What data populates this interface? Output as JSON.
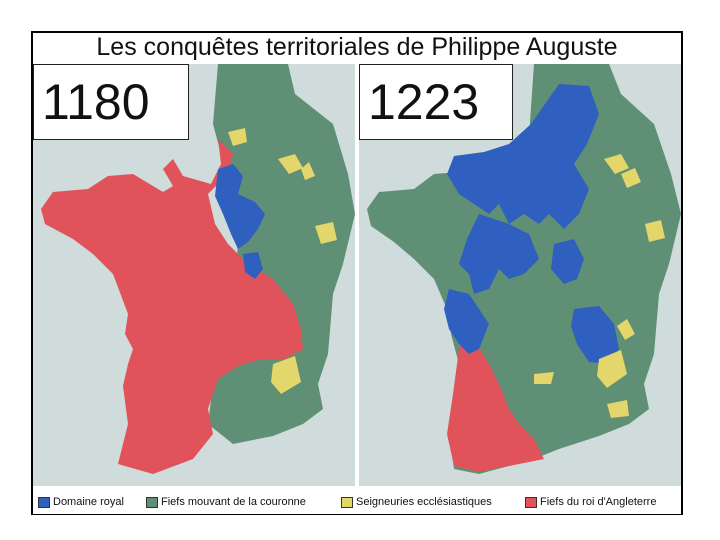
{
  "title": "Les conquêtes territoriales de Philippe Auguste",
  "maps": [
    {
      "year": "1180"
    },
    {
      "year": "1223"
    }
  ],
  "colors": {
    "sea": "#cfdcdb",
    "domaine_royal": "#2f5fbf",
    "fiefs_mouvant": "#5f8f74",
    "seigneuries": "#e3d66a",
    "fiefs_angleterre": "#e0535a"
  },
  "legend": [
    {
      "label": "Domaine royal",
      "color": "#2f5fbf"
    },
    {
      "label": "Fiefs mouvant de la couronne",
      "color": "#5f8f74"
    },
    {
      "label": "Seigneuries ecclésiastiques",
      "color": "#e3d66a"
    },
    {
      "label": "Fiefs du roi d'Angleterre",
      "color": "#e0535a"
    }
  ]
}
